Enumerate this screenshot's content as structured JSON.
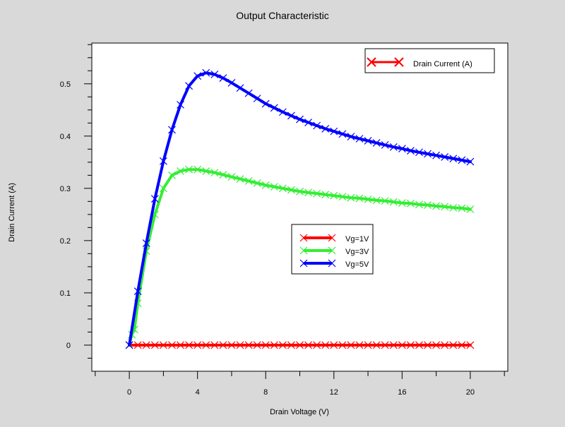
{
  "chart_data": {
    "type": "line",
    "title": "Output Characteristic",
    "xlabel": "Drain Voltage (V)",
    "ylabel": "Drain Current (A)",
    "xlim": [
      -2.2,
      22.2
    ],
    "ylim": [
      -0.05,
      0.578
    ],
    "xticks": [
      0,
      4,
      8,
      12,
      16,
      20
    ],
    "xtick_labels": [
      "0",
      "4",
      "8",
      "12",
      "16",
      "20"
    ],
    "yticks": [
      0,
      0.1,
      0.2,
      0.3,
      0.4,
      0.5
    ],
    "ytick_labels": [
      "0",
      "0.1",
      "0.2",
      "0.3",
      "0.4",
      "0.5"
    ],
    "grid": false,
    "legends": [
      {
        "position": "top-right",
        "entries": [
          {
            "label": "Drain Current (A)",
            "color": "#ff0000"
          }
        ]
      },
      {
        "position": "center-right",
        "entries": [
          {
            "label": "Vg=1V",
            "color": "#ff0000"
          },
          {
            "label": "Vg=3V",
            "color": "#33ee33"
          },
          {
            "label": "Vg=5V",
            "color": "#0000ff"
          }
        ]
      }
    ],
    "series": [
      {
        "name": "Vg=1V",
        "color": "#ff0000",
        "x": [
          0,
          0.5,
          1,
          1.5,
          2,
          2.5,
          3,
          3.5,
          4,
          4.5,
          5,
          5.5,
          6,
          6.5,
          7,
          7.5,
          8,
          8.5,
          9,
          9.5,
          10,
          10.5,
          11,
          11.5,
          12,
          12.5,
          13,
          13.5,
          14,
          14.5,
          15,
          15.5,
          16,
          16.5,
          17,
          17.5,
          18,
          18.5,
          19,
          19.5,
          20
        ],
        "y": [
          0,
          0,
          0,
          0,
          0,
          0,
          0,
          0,
          0,
          0,
          0,
          0,
          0,
          0,
          0,
          0,
          0,
          0,
          0,
          0,
          0,
          0,
          0,
          0,
          0,
          0,
          0,
          0,
          0,
          0,
          0,
          0,
          0,
          0,
          0,
          0,
          0,
          0,
          0,
          0,
          0
        ]
      },
      {
        "name": "Vg=3V",
        "color": "#33ee33",
        "x": [
          0,
          0.15,
          0.3,
          0.5,
          1,
          1.5,
          2,
          2.5,
          3,
          3.5,
          4,
          4.5,
          5,
          5.5,
          6,
          6.5,
          7,
          7.5,
          8,
          8.5,
          9,
          9.5,
          10,
          10.5,
          11,
          11.5,
          12,
          12.5,
          13,
          13.5,
          14,
          14.5,
          15,
          15.5,
          16,
          16.5,
          17,
          17.5,
          18,
          18.5,
          19,
          19.5,
          20
        ],
        "y": [
          0,
          0.02,
          0.03,
          0.08,
          0.18,
          0.25,
          0.3,
          0.325,
          0.333,
          0.336,
          0.336,
          0.333,
          0.33,
          0.326,
          0.322,
          0.318,
          0.314,
          0.31,
          0.306,
          0.303,
          0.3,
          0.297,
          0.294,
          0.292,
          0.29,
          0.288,
          0.286,
          0.284,
          0.282,
          0.281,
          0.279,
          0.277,
          0.276,
          0.274,
          0.272,
          0.271,
          0.269,
          0.268,
          0.266,
          0.265,
          0.263,
          0.262,
          0.26
        ]
      },
      {
        "name": "Vg=5V",
        "color": "#0000ff",
        "x": [
          0,
          0.5,
          1,
          1.5,
          2,
          2.5,
          3,
          3.5,
          4,
          4.5,
          5,
          5.5,
          6,
          6.5,
          7,
          7.5,
          8,
          8.5,
          9,
          9.5,
          10,
          10.5,
          11,
          11.5,
          12,
          12.5,
          13,
          13.5,
          14,
          14.5,
          15,
          15.5,
          16,
          16.5,
          17,
          17.5,
          18,
          18.5,
          19,
          19.5,
          20
        ],
        "y": [
          0,
          0.103,
          0.195,
          0.28,
          0.352,
          0.412,
          0.46,
          0.496,
          0.515,
          0.521,
          0.518,
          0.511,
          0.502,
          0.492,
          0.482,
          0.472,
          0.462,
          0.454,
          0.446,
          0.439,
          0.432,
          0.426,
          0.42,
          0.414,
          0.409,
          0.404,
          0.399,
          0.395,
          0.391,
          0.387,
          0.383,
          0.379,
          0.376,
          0.372,
          0.369,
          0.366,
          0.363,
          0.36,
          0.357,
          0.354,
          0.351
        ]
      }
    ]
  }
}
